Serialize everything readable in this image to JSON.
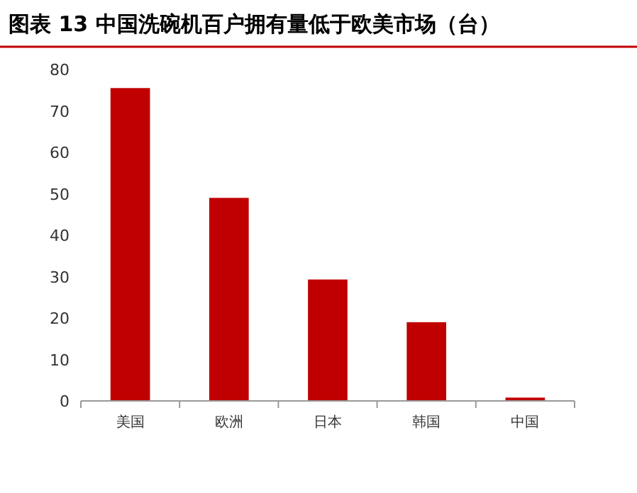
{
  "chart_data": {
    "type": "bar",
    "title": "图表 13 中国洗碗机百户拥有量低于欧美市场（台）",
    "categories": [
      "美国",
      "欧洲",
      "日本",
      "韩国",
      "中国"
    ],
    "values": [
      75.5,
      49,
      29.3,
      19,
      0.8
    ],
    "color": "#c00000",
    "ylim": [
      0,
      80
    ],
    "yticks": [
      0,
      10,
      20,
      30,
      40,
      50,
      60,
      70,
      80
    ],
    "grid": false
  }
}
